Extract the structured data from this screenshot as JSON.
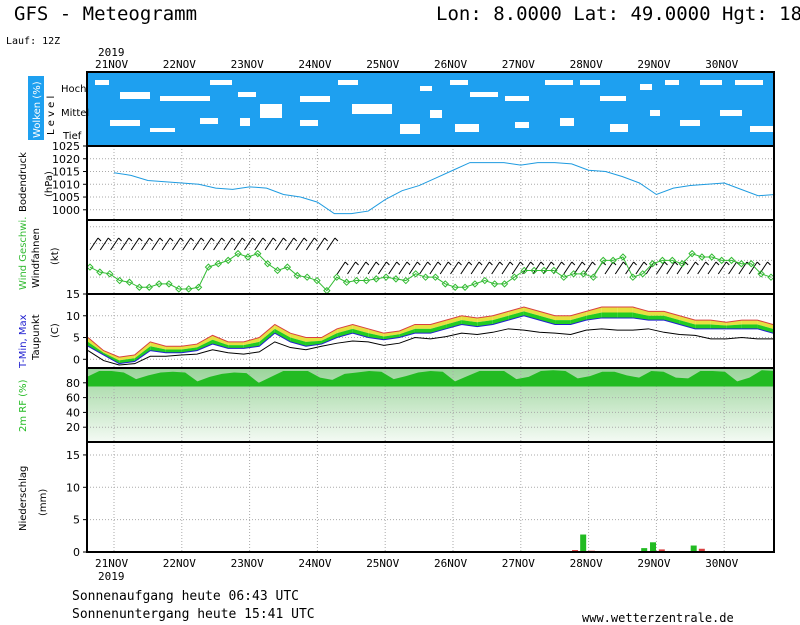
{
  "header": {
    "title": "GFS - Meteogramm",
    "location": "Lon: 8.0000  Lat: 49.0000  Hgt: 18",
    "run": "Lauf: 12Z",
    "year": "2019"
  },
  "footer": {
    "sunrise": "Sonnenaufgang heute 06:43 UTC",
    "sunset": "Sonnenuntergang heute 15:41 UTC",
    "site": "www.wetterzentrale.de"
  },
  "colors": {
    "cloud": "#1ea0f0",
    "pressure": "#1e9be0",
    "wind": "#33bb33",
    "tmax": "#d94040",
    "tmin": "#2020d0",
    "green": "#22bb22",
    "dewpoint": "#000000"
  },
  "chart_data": [
    {
      "type": "heatmap",
      "name": "clouds",
      "ylabel": "Wolken (%)",
      "levels_label": "L e v e l",
      "levels": [
        "Hoch",
        "Mittel",
        "Tief"
      ],
      "x": [
        "21NOV",
        "22NOV",
        "23NOV",
        "24NOV",
        "25NOV",
        "26NOV",
        "27NOV",
        "28NOV",
        "29NOV",
        "30NOV"
      ]
    },
    {
      "type": "line",
      "name": "pressure",
      "ylabel": "Bodendruck",
      "unit": "(hPa)",
      "ylim": [
        996,
        1025
      ],
      "yticks": [
        1000,
        1005,
        1010,
        1015,
        1020,
        1025
      ],
      "x_days": [
        0,
        0.25,
        0.5,
        0.75,
        1.0,
        1.25,
        1.5,
        1.75,
        2.0,
        2.25,
        2.5,
        2.75,
        3.0,
        3.25,
        3.5,
        3.75,
        4.0,
        4.25,
        4.5,
        4.75,
        5.0,
        5.25,
        5.5,
        5.75,
        6.0,
        6.25,
        6.5,
        6.75,
        7.0,
        7.25,
        7.5,
        7.75,
        8.0,
        8.25,
        8.5,
        8.75,
        9.0,
        9.25,
        9.5,
        9.75
      ],
      "values": [
        1014.5,
        1013.5,
        1011.5,
        1011,
        1010.5,
        1010,
        1008.5,
        1008,
        1009,
        1008.5,
        1006,
        1005,
        1003,
        998.5,
        998.5,
        999.5,
        1004,
        1007.5,
        1009.5,
        1012.5,
        1015.5,
        1018.5,
        1018.5,
        1018.5,
        1017.5,
        1018.5,
        1018.5,
        1018,
        1015.5,
        1015,
        1013,
        1010.5,
        1006,
        1008.5,
        1009.5,
        1010,
        1010.5,
        1008,
        1005.5,
        1006
      ]
    },
    {
      "type": "line",
      "name": "wind",
      "ylabel": "Wind Geschwi.",
      "ylabel2": "Windfahnen",
      "unit": "(kt)",
      "ylim": [
        0,
        22
      ],
      "yticks": [
        0,
        5,
        10,
        15,
        20
      ],
      "values": [
        8,
        6.5,
        6,
        4,
        3.5,
        2,
        2,
        3,
        3,
        1.5,
        1.5,
        2,
        8,
        9,
        10,
        12,
        11,
        12,
        9,
        7,
        8,
        5.5,
        5,
        4,
        1,
        5,
        3.5,
        4,
        4,
        4.5,
        5,
        4.5,
        4,
        6,
        5,
        5,
        3,
        2,
        2,
        3,
        4,
        3,
        3,
        5,
        7,
        7,
        7,
        7,
        5,
        6,
        6,
        5,
        10,
        10,
        11,
        5,
        6,
        9,
        10,
        10,
        9,
        12,
        11,
        11,
        10,
        10,
        9,
        9,
        6,
        5
      ]
    },
    {
      "type": "line",
      "name": "temperature",
      "ylabel": "T-Min, Max",
      "ylabel2": "Taupunkt",
      "unit": "(C)",
      "ylim": [
        -2,
        15
      ],
      "yticks": [
        0,
        5,
        10,
        15
      ],
      "series": [
        {
          "name": "Max",
          "values": [
            5,
            2,
            0.5,
            1,
            4,
            3,
            3,
            3.5,
            5.5,
            4,
            4,
            5,
            8,
            6,
            5,
            5,
            7,
            8,
            7,
            6,
            6.5,
            8,
            8,
            9,
            10,
            9.5,
            10,
            11,
            12,
            11,
            10,
            10,
            11,
            12,
            12,
            12,
            11,
            11,
            10,
            9,
            9,
            8.5,
            9,
            9,
            8
          ]
        },
        {
          "name": "Min",
          "values": [
            3,
            1,
            -1,
            -0.5,
            2,
            1.5,
            1.5,
            2,
            3.5,
            2.5,
            2.5,
            3,
            6,
            4,
            3,
            3.5,
            5,
            6,
            5,
            4.5,
            5,
            6,
            6,
            7,
            8,
            7.5,
            8,
            9,
            10,
            9,
            8,
            8,
            9,
            9.5,
            9.5,
            9.5,
            9,
            9,
            8,
            7,
            7,
            7,
            7,
            7,
            6
          ]
        },
        {
          "name": "Taupunkt",
          "values": [
            2,
            0,
            -1,
            -1,
            1,
            1,
            1,
            1.5,
            2.5,
            1.5,
            1.5,
            2,
            4,
            3,
            2.5,
            3,
            4,
            4.5,
            4,
            3.5,
            4,
            5,
            5,
            5.5,
            6,
            6,
            6.5,
            7,
            7,
            6.5,
            6,
            6,
            7,
            7,
            7,
            7,
            7,
            6.5,
            6,
            5.5,
            5,
            5,
            5,
            5,
            5
          ]
        }
      ]
    },
    {
      "type": "area",
      "name": "humidity",
      "ylabel": "2m RF (%)",
      "ylim": [
        0,
        100
      ],
      "yticks": [
        20,
        40,
        60,
        80
      ],
      "values": [
        88,
        96,
        96,
        94,
        85,
        90,
        94,
        95,
        94,
        82,
        88,
        92,
        94,
        93,
        80,
        88,
        96,
        96,
        96,
        87,
        84,
        92,
        94,
        96,
        95,
        85,
        89,
        94,
        96,
        95,
        82,
        89,
        96,
        96,
        96,
        85,
        88,
        96,
        97,
        96,
        86,
        89,
        95,
        95,
        90,
        87,
        96,
        95,
        87,
        86,
        96,
        96,
        95,
        82,
        87,
        97,
        96
      ]
    },
    {
      "type": "bar",
      "name": "precipitation",
      "ylabel": "Niederschlag",
      "unit": "(mm)",
      "ylim": [
        0,
        17
      ],
      "yticks": [
        0,
        5,
        10,
        15
      ],
      "bars": [
        {
          "day": 6.8,
          "value": 0.3,
          "color": "#d94040"
        },
        {
          "day": 6.92,
          "value": 2.7,
          "color": "#22bb22"
        },
        {
          "day": 7.05,
          "value": 0.2,
          "color": "#d94040"
        },
        {
          "day": 7.82,
          "value": 0.6,
          "color": "#22bb22"
        },
        {
          "day": 7.95,
          "value": 1.5,
          "color": "#22bb22"
        },
        {
          "day": 8.08,
          "value": 0.4,
          "color": "#d94040"
        },
        {
          "day": 8.55,
          "value": 1.0,
          "color": "#22bb22"
        },
        {
          "day": 8.67,
          "value": 0.5,
          "color": "#d94040"
        }
      ]
    }
  ]
}
